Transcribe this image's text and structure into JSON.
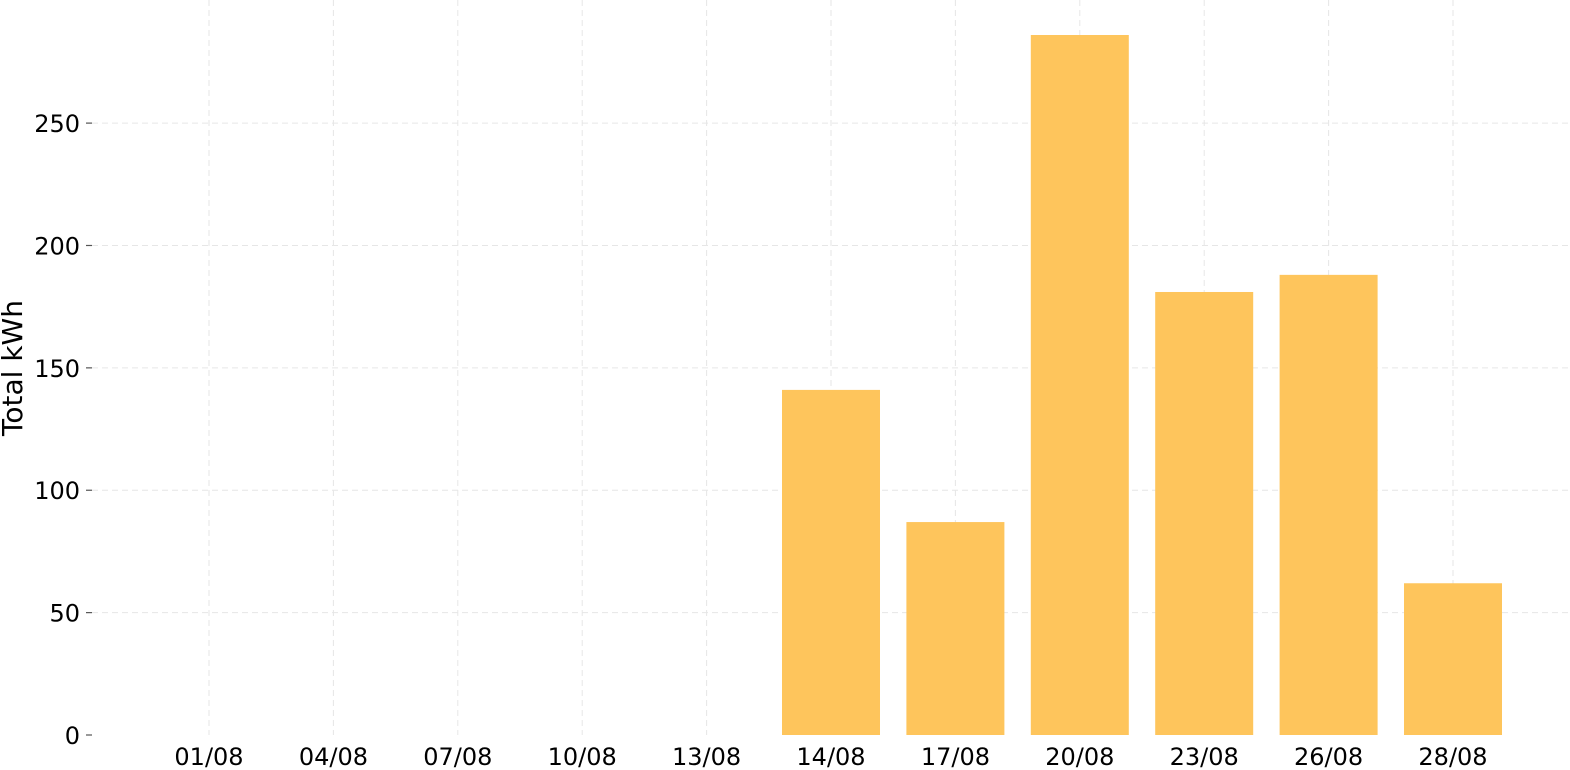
{
  "chart_data": {
    "type": "bar",
    "title": "",
    "xlabel": "",
    "ylabel": "Total kWh",
    "categories": [
      "01/08",
      "04/08",
      "07/08",
      "10/08",
      "13/08",
      "14/08",
      "17/08",
      "20/08",
      "23/08",
      "26/08",
      "28/08"
    ],
    "values": [
      0,
      0,
      0,
      0,
      0,
      141,
      87,
      286,
      181,
      188,
      62
    ],
    "ylim": [
      0,
      286
    ],
    "yticks": [
      0,
      50,
      100,
      150,
      200,
      250
    ],
    "grid": true,
    "bar_color": "#fec55c"
  }
}
